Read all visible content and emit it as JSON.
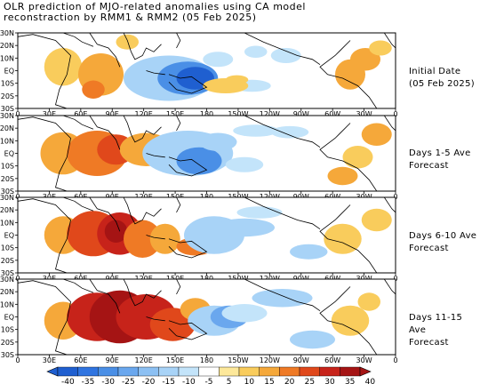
{
  "title": {
    "line1": "OLR prediction of MJO-related anomalies using CA model",
    "line2": "reconstraction by RMM1 & RMM2 (05 Feb 2025)"
  },
  "panels": [
    {
      "label_line1": "Initial Date",
      "label_line2": "(05 Feb 2025)"
    },
    {
      "label_line1": "Days 1-5 Ave",
      "label_line2": "Forecast"
    },
    {
      "label_line1": "Days 6-10 Ave",
      "label_line2": "Forecast"
    },
    {
      "label_line1": "Days 11-15 Ave",
      "label_line2": "Forecast"
    }
  ],
  "lat_labels": [
    "30N",
    "20N",
    "10N",
    "EQ",
    "10S",
    "20S",
    "30S"
  ],
  "lon_labels": [
    "0",
    "30E",
    "60E",
    "90E",
    "120E",
    "150E",
    "180",
    "150W",
    "120W",
    "90W",
    "60W",
    "30W",
    "0"
  ],
  "colorbar": {
    "labels": [
      "-40",
      "-35",
      "-30",
      "-25",
      "-20",
      "-15",
      "-10",
      "-5",
      "5",
      "10",
      "15",
      "20",
      "25",
      "30",
      "35",
      "40"
    ],
    "colors": [
      "#1f5fd0",
      "#2f74e0",
      "#4a8fe6",
      "#6aa7ee",
      "#8cc0f3",
      "#a8d3f7",
      "#c3e4fa",
      "#ffffff",
      "#fde89a",
      "#f9cc5c",
      "#f5a83a",
      "#ef7a25",
      "#e0481b",
      "#c7231a",
      "#a51414"
    ]
  }
}
